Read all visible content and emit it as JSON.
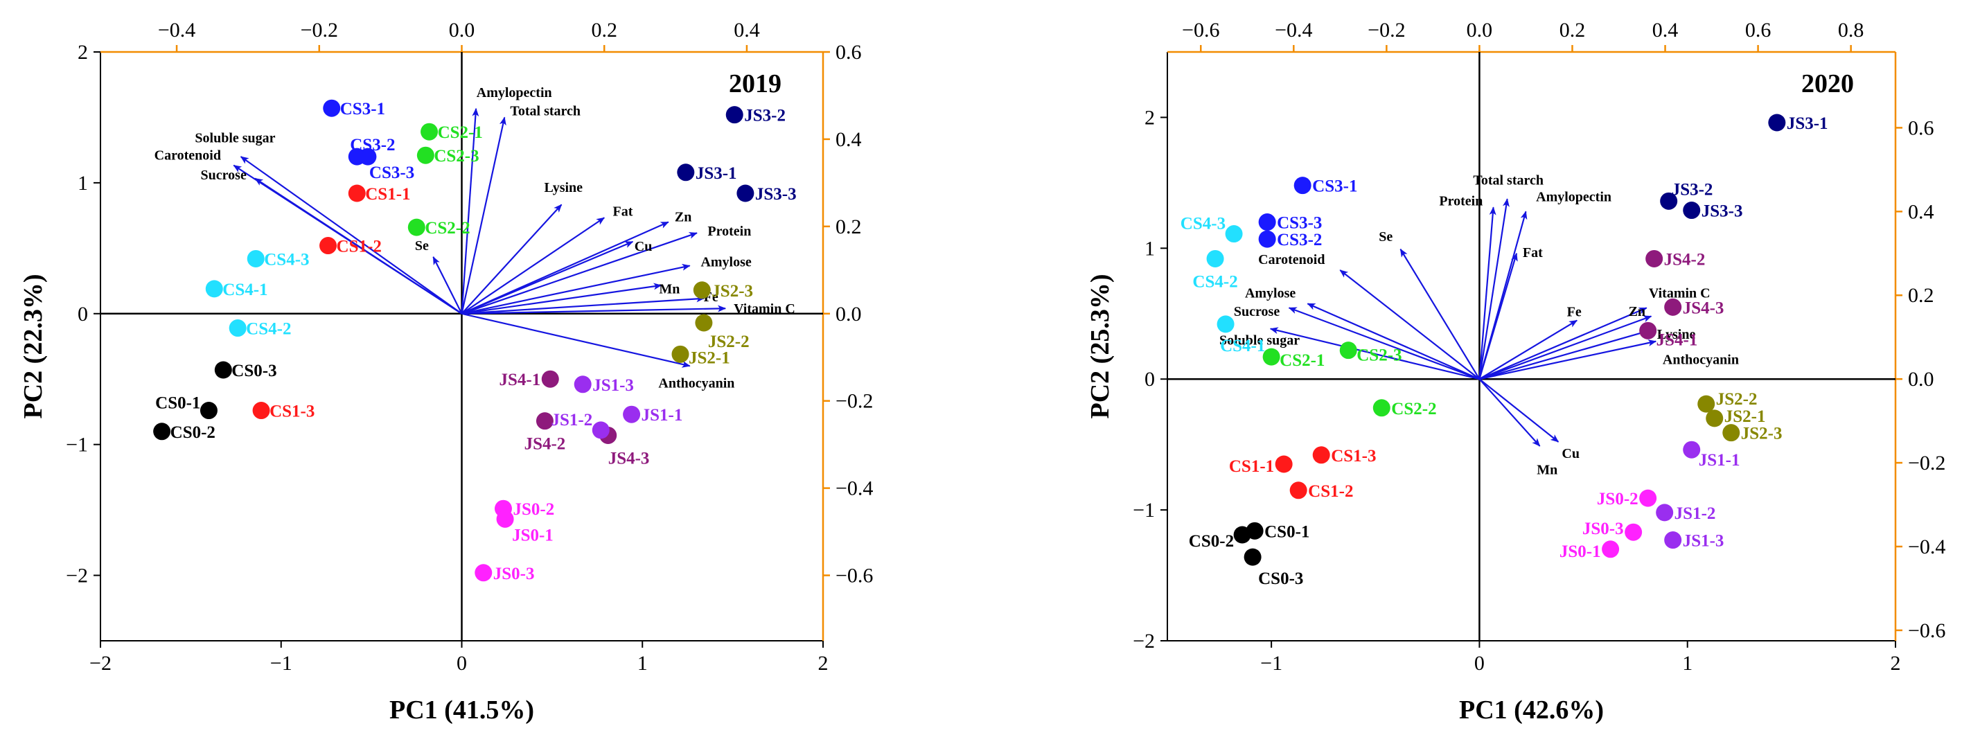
{
  "colors": {
    "CS0": "#000000",
    "CS1": "#ff1a1a",
    "CS2": "#22e022",
    "CS3": "#1a1aff",
    "CS4": "#22e0ff",
    "JS0": "#ff22ff",
    "JS1": "#9a2eef",
    "JS2": "#878700",
    "JS3": "#000080",
    "JS4": "#8e1a7c",
    "vector": "#1515e0",
    "orange_axis": "#f28c00"
  },
  "chart_data": [
    {
      "type": "scatter",
      "title": "2019",
      "xlabel": "PC1 (41.5%)",
      "ylabel": "PC2 (22.3%)",
      "xlim": [
        -2,
        2
      ],
      "ylim": [
        -2.5,
        2
      ],
      "xticks": [
        -2,
        -1,
        0,
        1,
        2
      ],
      "yticks": [
        -2,
        -1,
        0,
        1,
        2
      ],
      "xtick_labels": [
        "−2",
        "−1",
        "0",
        "1",
        "2"
      ],
      "ytick_labels": [
        "−2",
        "−1",
        "0",
        "1",
        "2"
      ],
      "top_lim": [
        -0.507,
        0.507
      ],
      "top_ticks": [
        -0.4,
        -0.2,
        0.0,
        0.2,
        0.4
      ],
      "top_tick_labels": [
        "−0.4",
        "−0.2",
        "0.0",
        "0.2",
        "0.4"
      ],
      "right_lim": [
        -0.75,
        0.6
      ],
      "right_ticks": [
        -0.6,
        -0.4,
        -0.2,
        0.0,
        0.2,
        0.4,
        0.6
      ],
      "right_tick_labels": [
        "−0.6",
        "−0.4",
        "−0.2",
        "0.0",
        "0.2",
        "0.4",
        "0.6"
      ],
      "points": [
        {
          "label": "CS3-1",
          "group": "CS3",
          "x": -0.72,
          "y": 1.57,
          "lx": 12,
          "ly": 0,
          "anchor": "start"
        },
        {
          "label": "CS3-2",
          "group": "CS3",
          "x": -0.58,
          "y": 1.2,
          "lx": -10,
          "ly": -18,
          "anchor": "start"
        },
        {
          "label": "CS3-3",
          "group": "CS3",
          "x": -0.52,
          "y": 1.2,
          "lx": 2,
          "ly": 22,
          "anchor": "start"
        },
        {
          "label": "CS2-1",
          "group": "CS2",
          "x": -0.18,
          "y": 1.39,
          "lx": 12,
          "ly": 0,
          "anchor": "start"
        },
        {
          "label": "CS2-3",
          "group": "CS2",
          "x": -0.2,
          "y": 1.21,
          "lx": 12,
          "ly": 0,
          "anchor": "start"
        },
        {
          "label": "CS2-2",
          "group": "CS2",
          "x": -0.25,
          "y": 0.66,
          "lx": 12,
          "ly": 0,
          "anchor": "start"
        },
        {
          "label": "CS1-1",
          "group": "CS1",
          "x": -0.58,
          "y": 0.92,
          "lx": 12,
          "ly": 0,
          "anchor": "start"
        },
        {
          "label": "CS1-2",
          "group": "CS1",
          "x": -0.74,
          "y": 0.52,
          "lx": 12,
          "ly": 0,
          "anchor": "start"
        },
        {
          "label": "CS1-3",
          "group": "CS1",
          "x": -1.11,
          "y": -0.74,
          "lx": 12,
          "ly": 0,
          "anchor": "start"
        },
        {
          "label": "CS4-3",
          "group": "CS4",
          "x": -1.14,
          "y": 0.42,
          "lx": 12,
          "ly": 0,
          "anchor": "start"
        },
        {
          "label": "CS4-1",
          "group": "CS4",
          "x": -1.37,
          "y": 0.19,
          "lx": 12,
          "ly": 0,
          "anchor": "start"
        },
        {
          "label": "CS4-2",
          "group": "CS4",
          "x": -1.24,
          "y": -0.11,
          "lx": 12,
          "ly": 0,
          "anchor": "start"
        },
        {
          "label": "CS0-3",
          "group": "CS0",
          "x": -1.32,
          "y": -0.43,
          "lx": 12,
          "ly": 0,
          "anchor": "start"
        },
        {
          "label": "CS0-1",
          "group": "CS0",
          "x": -1.4,
          "y": -0.74,
          "lx": -12,
          "ly": -12,
          "anchor": "end"
        },
        {
          "label": "CS0-2",
          "group": "CS0",
          "x": -1.66,
          "y": -0.9,
          "lx": 12,
          "ly": 0,
          "anchor": "start"
        },
        {
          "label": "JS3-2",
          "group": "JS3",
          "x": 1.51,
          "y": 1.52,
          "lx": 14,
          "ly": 0,
          "anchor": "start"
        },
        {
          "label": "JS3-1",
          "group": "JS3",
          "x": 1.24,
          "y": 1.08,
          "lx": 14,
          "ly": 0,
          "anchor": "start"
        },
        {
          "label": "JS3-3",
          "group": "JS3",
          "x": 1.57,
          "y": 0.92,
          "lx": 14,
          "ly": 0,
          "anchor": "start"
        },
        {
          "label": "JS2-3",
          "group": "JS2",
          "x": 1.33,
          "y": 0.18,
          "lx": 14,
          "ly": 0,
          "anchor": "start"
        },
        {
          "label": "JS2-2",
          "group": "JS2",
          "x": 1.34,
          "y": -0.07,
          "lx": 6,
          "ly": 26,
          "anchor": "start"
        },
        {
          "label": "JS2-1",
          "group": "JS2",
          "x": 1.21,
          "y": -0.31,
          "lx": 12,
          "ly": 4,
          "anchor": "start"
        },
        {
          "label": "JS4-1",
          "group": "JS4",
          "x": 0.49,
          "y": -0.5,
          "lx": -14,
          "ly": 0,
          "anchor": "end"
        },
        {
          "label": "JS4-2",
          "group": "JS4",
          "x": 0.46,
          "y": -0.82,
          "lx": 0,
          "ly": 32,
          "anchor": "middle"
        },
        {
          "label": "JS4-3",
          "group": "JS4",
          "x": 0.81,
          "y": -0.93,
          "lx": 0,
          "ly": 32,
          "anchor": "start"
        },
        {
          "label": "JS1-3",
          "group": "JS1",
          "x": 0.67,
          "y": -0.54,
          "lx": 14,
          "ly": 0,
          "anchor": "start"
        },
        {
          "label": "JS1-1",
          "group": "JS1",
          "x": 0.94,
          "y": -0.77,
          "lx": 14,
          "ly": 0,
          "anchor": "start"
        },
        {
          "label": "JS1-2",
          "group": "JS1",
          "x": 0.77,
          "y": -0.89,
          "lx": -12,
          "ly": -16,
          "anchor": "end"
        },
        {
          "label": "JS0-2",
          "group": "JS0",
          "x": 0.23,
          "y": -1.49,
          "lx": 14,
          "ly": 0,
          "anchor": "start"
        },
        {
          "label": "JS0-1",
          "group": "JS0",
          "x": 0.24,
          "y": -1.57,
          "lx": 10,
          "ly": 22,
          "anchor": "start"
        },
        {
          "label": "JS0-3",
          "group": "JS0",
          "x": 0.12,
          "y": -1.98,
          "lx": 14,
          "ly": 0,
          "anchor": "start"
        }
      ],
      "vectors": [
        {
          "label": "Amylopectin",
          "x": 0.02,
          "y": 0.47,
          "lx": 0,
          "ly": -14,
          "anchor": "start"
        },
        {
          "label": "Total starch",
          "x": 0.06,
          "y": 0.45,
          "lx": 6,
          "ly": 0,
          "anchor": "start"
        },
        {
          "label": "Soluble sugar",
          "x": -0.31,
          "y": 0.36,
          "lx": 0,
          "ly": -22,
          "anchor": "middle"
        },
        {
          "label": "Carotenoid",
          "x": -0.32,
          "y": 0.34,
          "lx": -10,
          "ly": -10,
          "anchor": "end"
        },
        {
          "label": "Sucrose",
          "x": -0.29,
          "y": 0.31,
          "lx": -4,
          "ly": 0,
          "anchor": "end"
        },
        {
          "label": "Se",
          "x": -0.04,
          "y": 0.13,
          "lx": -12,
          "ly": -8,
          "anchor": "middle"
        },
        {
          "label": "Lysine",
          "x": 0.14,
          "y": 0.25,
          "lx": -4,
          "ly": -18,
          "anchor": "middle"
        },
        {
          "label": "Fat",
          "x": 0.2,
          "y": 0.22,
          "lx": 4,
          "ly": -4,
          "anchor": "start"
        },
        {
          "label": "Zn",
          "x": 0.29,
          "y": 0.21,
          "lx": 0,
          "ly": -4,
          "anchor": "start"
        },
        {
          "label": "Protein",
          "x": 0.33,
          "y": 0.185,
          "lx": 6,
          "ly": 0,
          "anchor": "start"
        },
        {
          "label": "Cu",
          "x": 0.24,
          "y": 0.165,
          "lx": 6,
          "ly": 10,
          "anchor": "middle"
        },
        {
          "label": "Amylose",
          "x": 0.32,
          "y": 0.11,
          "lx": 6,
          "ly": -4,
          "anchor": "start"
        },
        {
          "label": "Mn",
          "x": 0.28,
          "y": 0.065,
          "lx": 2,
          "ly": 6,
          "anchor": "middle"
        },
        {
          "label": "Fe",
          "x": 0.34,
          "y": 0.035,
          "lx": 0,
          "ly": -2,
          "anchor": "middle"
        },
        {
          "label": "Vitamin C",
          "x": 0.37,
          "y": 0.012,
          "lx": 2,
          "ly": 0,
          "anchor": "start"
        },
        {
          "label": "Anthocyanin",
          "x": 0.32,
          "y": -0.12,
          "lx": 0,
          "ly": 22,
          "anchor": "middle"
        }
      ]
    },
    {
      "type": "scatter",
      "title": "2020",
      "xlabel": "PC1 (42.6%)",
      "ylabel": "PC2 (25.3%)",
      "xlim": [
        -1.5,
        2
      ],
      "ylim": [
        -2,
        2.5
      ],
      "xticks": [
        -1,
        0,
        1,
        2
      ],
      "yticks": [
        -2,
        -1,
        0,
        1,
        2
      ],
      "xtick_labels": [
        "−1",
        "0",
        "1",
        "2"
      ],
      "ytick_labels": [
        "−2",
        "−1",
        "0",
        "1",
        "2"
      ],
      "top_lim": [
        -0.672,
        0.896
      ],
      "top_ticks": [
        -0.6,
        -0.4,
        -0.2,
        0.0,
        0.2,
        0.4,
        0.6,
        0.8
      ],
      "top_tick_labels": [
        "−0.6",
        "−0.4",
        "−0.2",
        "0.0",
        "0.2",
        "0.4",
        "0.6",
        "0.8"
      ],
      "right_lim": [
        -0.625,
        0.781
      ],
      "right_ticks": [
        -0.6,
        -0.4,
        -0.2,
        0.0,
        0.2,
        0.4,
        0.6
      ],
      "right_tick_labels": [
        "−0.6",
        "−0.4",
        "−0.2",
        "0.0",
        "0.2",
        "0.4",
        "0.6"
      ],
      "points": [
        {
          "label": "JS3-1",
          "group": "JS3",
          "x": 1.43,
          "y": 1.96,
          "lx": 14,
          "ly": 0,
          "anchor": "start"
        },
        {
          "label": "JS3-2",
          "group": "JS3",
          "x": 0.91,
          "y": 1.36,
          "lx": 4,
          "ly": -18,
          "anchor": "start"
        },
        {
          "label": "JS3-3",
          "group": "JS3",
          "x": 1.02,
          "y": 1.29,
          "lx": 14,
          "ly": 0,
          "anchor": "start"
        },
        {
          "label": "JS4-2",
          "group": "JS4",
          "x": 0.84,
          "y": 0.92,
          "lx": 14,
          "ly": 0,
          "anchor": "start"
        },
        {
          "label": "JS4-3",
          "group": "JS4",
          "x": 0.93,
          "y": 0.55,
          "lx": 14,
          "ly": 0,
          "anchor": "start"
        },
        {
          "label": "JS4-1",
          "group": "JS4",
          "x": 0.81,
          "y": 0.37,
          "lx": 12,
          "ly": 12,
          "anchor": "start"
        },
        {
          "label": "JS2-2",
          "group": "JS2",
          "x": 1.09,
          "y": -0.19,
          "lx": 14,
          "ly": -8,
          "anchor": "start"
        },
        {
          "label": "JS2-1",
          "group": "JS2",
          "x": 1.13,
          "y": -0.3,
          "lx": 14,
          "ly": -4,
          "anchor": "start"
        },
        {
          "label": "JS2-3",
          "group": "JS2",
          "x": 1.21,
          "y": -0.41,
          "lx": 14,
          "ly": 0,
          "anchor": "start"
        },
        {
          "label": "JS1-1",
          "group": "JS1",
          "x": 1.02,
          "y": -0.54,
          "lx": 10,
          "ly": 14,
          "anchor": "start"
        },
        {
          "label": "JS1-2",
          "group": "JS1",
          "x": 0.89,
          "y": -1.02,
          "lx": 14,
          "ly": 0,
          "anchor": "start"
        },
        {
          "label": "JS1-3",
          "group": "JS1",
          "x": 0.93,
          "y": -1.23,
          "lx": 14,
          "ly": 0,
          "anchor": "start"
        },
        {
          "label": "JS0-2",
          "group": "JS0",
          "x": 0.81,
          "y": -0.91,
          "lx": -14,
          "ly": 0,
          "anchor": "end"
        },
        {
          "label": "JS0-3",
          "group": "JS0",
          "x": 0.74,
          "y": -1.17,
          "lx": -14,
          "ly": -6,
          "anchor": "end"
        },
        {
          "label": "JS0-1",
          "group": "JS0",
          "x": 0.63,
          "y": -1.3,
          "lx": -14,
          "ly": 2,
          "anchor": "end"
        },
        {
          "label": "CS3-1",
          "group": "CS3",
          "x": -0.85,
          "y": 1.48,
          "lx": 14,
          "ly": 0,
          "anchor": "start"
        },
        {
          "label": "CS3-3",
          "group": "CS3",
          "x": -1.02,
          "y": 1.2,
          "lx": 14,
          "ly": 0,
          "anchor": "start"
        },
        {
          "label": "CS3-2",
          "group": "CS3",
          "x": -1.02,
          "y": 1.07,
          "lx": 14,
          "ly": 0,
          "anchor": "start"
        },
        {
          "label": "CS4-3",
          "group": "CS4",
          "x": -1.18,
          "y": 1.11,
          "lx": -12,
          "ly": -16,
          "anchor": "end"
        },
        {
          "label": "CS4-2",
          "group": "CS4",
          "x": -1.27,
          "y": 0.92,
          "lx": 0,
          "ly": 32,
          "anchor": "middle"
        },
        {
          "label": "CS4-1",
          "group": "CS4",
          "x": -1.22,
          "y": 0.42,
          "lx": -8,
          "ly": 30,
          "anchor": "start"
        },
        {
          "label": "CS2-1",
          "group": "CS2",
          "x": -1.0,
          "y": 0.17,
          "lx": 12,
          "ly": 4,
          "anchor": "start"
        },
        {
          "label": "CS2-3",
          "group": "CS2",
          "x": -0.63,
          "y": 0.22,
          "lx": 12,
          "ly": 6,
          "anchor": "start"
        },
        {
          "label": "CS2-2",
          "group": "CS2",
          "x": -0.47,
          "y": -0.22,
          "lx": 14,
          "ly": 0,
          "anchor": "start"
        },
        {
          "label": "CS1-3",
          "group": "CS1",
          "x": -0.76,
          "y": -0.58,
          "lx": 14,
          "ly": 0,
          "anchor": "start"
        },
        {
          "label": "CS1-1",
          "group": "CS1",
          "x": -0.94,
          "y": -0.65,
          "lx": -14,
          "ly": 2,
          "anchor": "end"
        },
        {
          "label": "CS1-2",
          "group": "CS1",
          "x": -0.87,
          "y": -0.85,
          "lx": 14,
          "ly": 0,
          "anchor": "start"
        },
        {
          "label": "CS0-1",
          "group": "CS0",
          "x": -1.08,
          "y": -1.16,
          "lx": 14,
          "ly": 0,
          "anchor": "start"
        },
        {
          "label": "CS0-2",
          "group": "CS0",
          "x": -1.14,
          "y": -1.19,
          "lx": -12,
          "ly": 8,
          "anchor": "end"
        },
        {
          "label": "CS0-3",
          "group": "CS0",
          "x": -1.09,
          "y": -1.36,
          "lx": 8,
          "ly": 30,
          "anchor": "start"
        }
      ],
      "vectors": [
        {
          "label": "Total starch",
          "x": 0.06,
          "y": 0.43,
          "lx": 0,
          "ly": -18,
          "anchor": "middle"
        },
        {
          "label": "Protein",
          "x": 0.03,
          "y": 0.41,
          "lx": -16,
          "ly": 0,
          "anchor": "end"
        },
        {
          "label": "Amylopectin",
          "x": 0.1,
          "y": 0.4,
          "lx": 12,
          "ly": -12,
          "anchor": "start"
        },
        {
          "label": "Fat",
          "x": 0.08,
          "y": 0.3,
          "lx": 6,
          "ly": 8,
          "anchor": "start"
        },
        {
          "label": "Se",
          "x": -0.17,
          "y": 0.31,
          "lx": -16,
          "ly": -10,
          "anchor": "middle"
        },
        {
          "label": "Carotenoid",
          "x": -0.3,
          "y": 0.26,
          "lx": -14,
          "ly": -10,
          "anchor": "end"
        },
        {
          "label": "Amylose",
          "x": -0.37,
          "y": 0.18,
          "lx": -8,
          "ly": -12,
          "anchor": "end"
        },
        {
          "label": "Sucrose",
          "x": -0.41,
          "y": 0.17,
          "lx": -4,
          "ly": 8,
          "anchor": "end"
        },
        {
          "label": "Soluble sugar",
          "x": -0.45,
          "y": 0.12,
          "lx": -6,
          "ly": 18,
          "anchor": "middle"
        },
        {
          "label": "Vitamin C",
          "x": 0.36,
          "y": 0.17,
          "lx": -6,
          "ly": -18,
          "anchor": "start"
        },
        {
          "label": "Zn",
          "x": 0.37,
          "y": 0.15,
          "lx": -30,
          "ly": -4,
          "anchor": "middle"
        },
        {
          "label": "Fe",
          "x": 0.21,
          "y": 0.14,
          "lx": -2,
          "ly": -8,
          "anchor": "end"
        },
        {
          "label": "Lysine",
          "x": 0.38,
          "y": 0.12,
          "lx": -8,
          "ly": 10,
          "anchor": "start"
        },
        {
          "label": "Anthocyanin",
          "x": 0.38,
          "y": 0.09,
          "lx": 0,
          "ly": 28,
          "anchor": "start"
        },
        {
          "label": "Cu",
          "x": 0.17,
          "y": -0.15,
          "lx": 10,
          "ly": 10,
          "anchor": "middle"
        },
        {
          "label": "Mn",
          "x": 0.13,
          "y": -0.16,
          "lx": 4,
          "ly": 26,
          "anchor": "middle"
        }
      ]
    }
  ]
}
